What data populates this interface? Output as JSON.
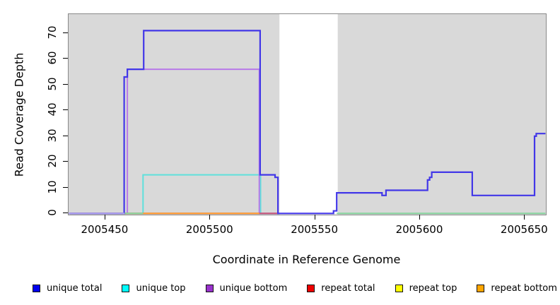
{
  "figure": {
    "x_axis_title": "Coordinate in Reference Genome",
    "y_axis_title": "Read Coverage Depth"
  },
  "legend": {
    "items": [
      {
        "label": "unique total",
        "color": "#0000ee"
      },
      {
        "label": "unique top",
        "color": "#00ffff"
      },
      {
        "label": "unique bottom",
        "color": "#9932cc"
      },
      {
        "label": "repeat total",
        "color": "#ee0000"
      },
      {
        "label": "repeat top",
        "color": "#ffff00"
      },
      {
        "label": "repeat bottom",
        "color": "#ffa500"
      }
    ]
  },
  "chart_data": {
    "type": "line",
    "subtype": "step-coverage-plot",
    "xlabel": "Coordinate in Reference Genome",
    "ylabel": "Read Coverage Depth",
    "xlim": [
      2005432.5,
      2005660
    ],
    "ylim": [
      0,
      77.4
    ],
    "x_ticks": [
      2005450,
      2005500,
      2005550,
      2005600,
      2005650
    ],
    "y_ticks": [
      0,
      10,
      20,
      30,
      40,
      50,
      60,
      70
    ],
    "panel_background": "#d9d9d9",
    "zero_coverage_gap_x": [
      2005533,
      2005560.8
    ],
    "series": [
      {
        "name": "unique top",
        "color": "#5fe0dc",
        "draw": true,
        "steps": [
          [
            2005433,
            0
          ],
          [
            2005468,
            15
          ],
          [
            2005524,
            0
          ]
        ],
        "end": 2005524
      },
      {
        "name": "unique bottom",
        "color": "#b879e8",
        "draw": true,
        "steps": [
          [
            2005433,
            0
          ],
          [
            2005460.5,
            56
          ],
          [
            2005523.4,
            0
          ]
        ],
        "end": 2005532
      },
      {
        "name": "repeat total",
        "color": "#c25575",
        "draw": true,
        "steps": [
          [
            2005433,
            0
          ]
        ],
        "end": 2005532.3
      },
      {
        "name": "repeat top",
        "color": "#ffff00",
        "draw": false,
        "steps": [
          [
            2005433,
            0
          ]
        ],
        "end": 2005660
      },
      {
        "name": "repeat bottom",
        "color": "#ff9d2e",
        "draw": true,
        "steps": [
          [
            2005433,
            0
          ]
        ],
        "end": 2005523.4
      },
      {
        "name": "unique total",
        "color": "#4237e8",
        "draw": true,
        "steps": [
          [
            2005433,
            0
          ],
          [
            2005459,
            53
          ],
          [
            2005460.5,
            56
          ],
          [
            2005468.3,
            71
          ],
          [
            2005523.8,
            15
          ],
          [
            2005530.9,
            14
          ],
          [
            2005532.3,
            0
          ],
          [
            2005558.8,
            1
          ],
          [
            2005560.3,
            8
          ],
          [
            2005581.9,
            7
          ],
          [
            2005583.8,
            9
          ],
          [
            2005603.6,
            13
          ],
          [
            2005604.6,
            14
          ],
          [
            2005605.6,
            16
          ],
          [
            2005624.9,
            7
          ],
          [
            2005654.6,
            30
          ],
          [
            2005655.4,
            31
          ]
        ],
        "end": 2005659.8
      }
    ],
    "zero_line_blend_segments": [
      {
        "color": "#84d29c",
        "value": 0,
        "ranges": [
          [
            2005459,
            2005468
          ],
          [
            2005560.3,
            2005659.8
          ]
        ]
      },
      {
        "color": "#a79df0",
        "value": 0,
        "ranges": [
          [
            2005432.5,
            2005459.2
          ]
        ]
      }
    ]
  }
}
